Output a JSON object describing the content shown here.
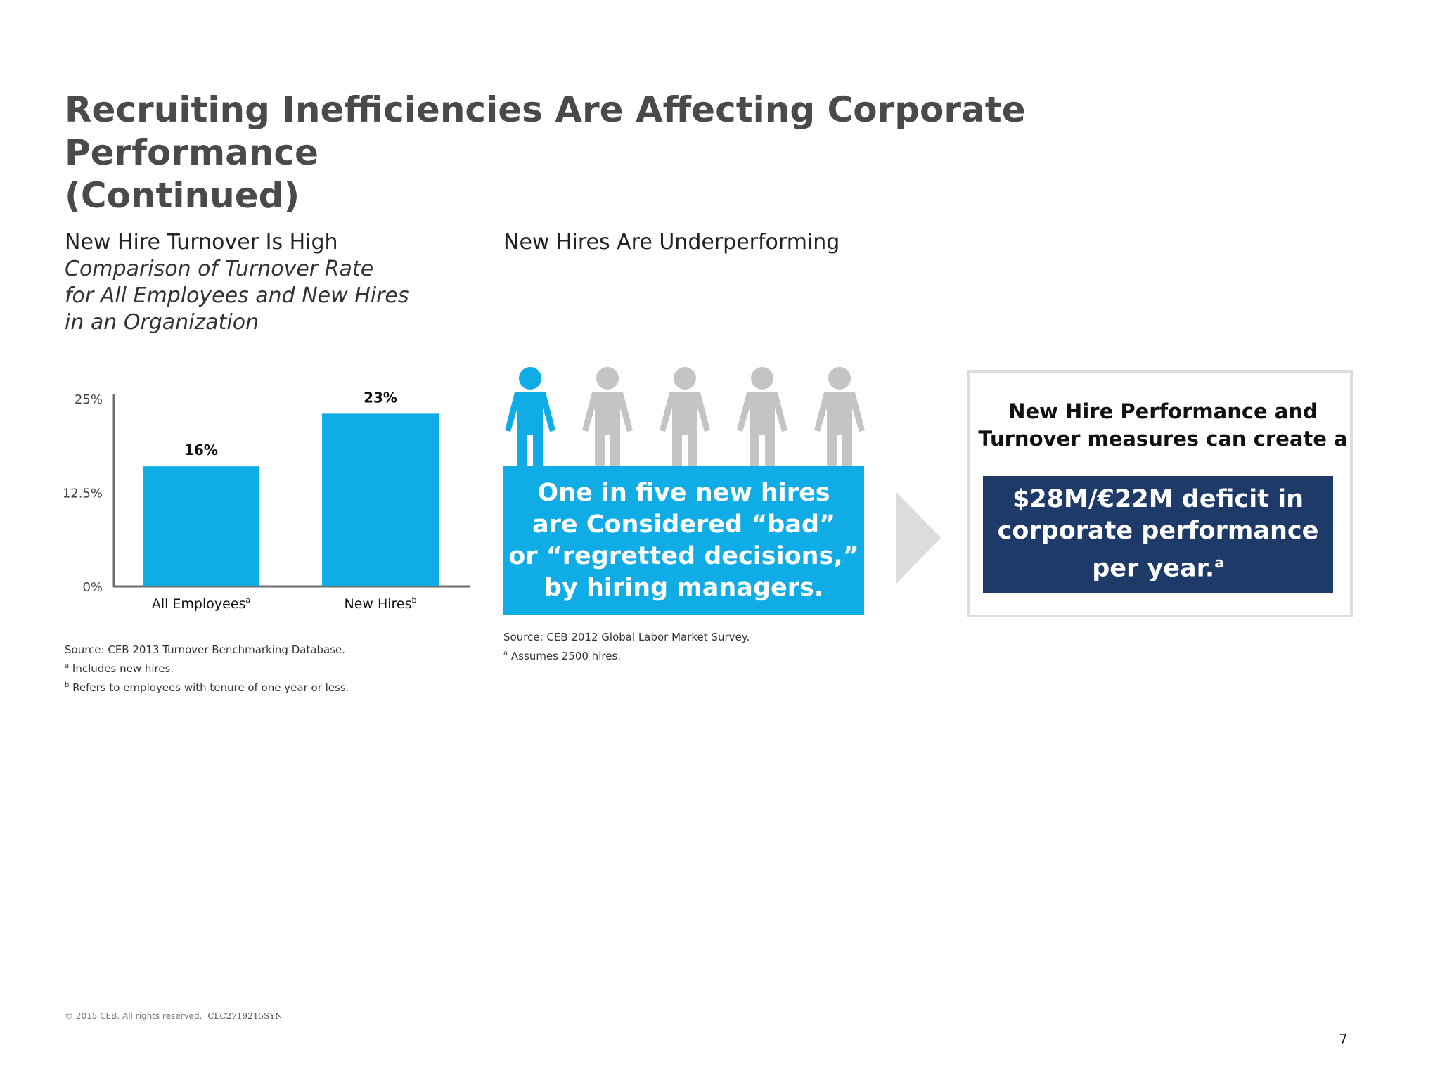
{
  "page": {
    "title_line1": "Recruiting Inefficiencies Are Affecting Corporate Performance",
    "title_line2": "(Continued)",
    "page_number": "7"
  },
  "left_section": {
    "heading": "New Hire Turnover Is High",
    "subheading_lines": [
      "Comparison of Turnover Rate",
      "for All Employees and New Hires",
      "in an Organization"
    ],
    "source": "Source: CEB 2013 Turnover Benchmarking Database.",
    "footnotes": [
      {
        "mark": "a",
        "text": "Includes new hires."
      },
      {
        "mark": "b",
        "text": "Refers to employees with tenure of one year or less."
      }
    ]
  },
  "chart_data": {
    "type": "bar",
    "title": "Comparison of Turnover Rate for All Employees and New Hires in an Organization",
    "categories": [
      "All Employees",
      "New Hires"
    ],
    "category_marks": [
      "a",
      "b"
    ],
    "values": [
      16,
      23
    ],
    "value_labels": [
      "16%",
      "23%"
    ],
    "ytick_values": [
      0,
      12.5,
      25
    ],
    "ytick_labels": [
      "0%",
      "12.5%",
      "25%"
    ],
    "ylim": [
      0,
      25
    ],
    "xlabel": "",
    "ylabel": "",
    "grid": false,
    "bar_color": "#10ace6"
  },
  "middle_section": {
    "heading": "New Hires Are Underperforming",
    "callout_lines": [
      "One in five new hires",
      "are Considered “bad”",
      "or “regretted decisions,”",
      "by hiring managers."
    ],
    "source": "Source: CEB 2012 Global Labor Market Survey.",
    "footnote": {
      "mark": "a",
      "text": "Assumes 2500 hires."
    },
    "people": {
      "total": 5,
      "highlighted": 1,
      "highlight_color": "#10ace6",
      "other_color": "#c4c4c4"
    }
  },
  "right_section": {
    "lead_lines": [
      "New Hire Performance and",
      "Turnover measures can create a"
    ],
    "highlight_lines": [
      "$28M/€22M deficit in",
      "corporate performance",
      "per year."
    ],
    "highlight_mark": "a"
  },
  "footer": {
    "copyright": "© 2015 CEB. All rights reserved.",
    "code": "CLC2719215SYN"
  },
  "colors": {
    "accent_blue": "#10ace6",
    "navy": "#1e3a68",
    "title_gray": "#4a4a4a",
    "arrow_gray": "#dcdcdc"
  }
}
